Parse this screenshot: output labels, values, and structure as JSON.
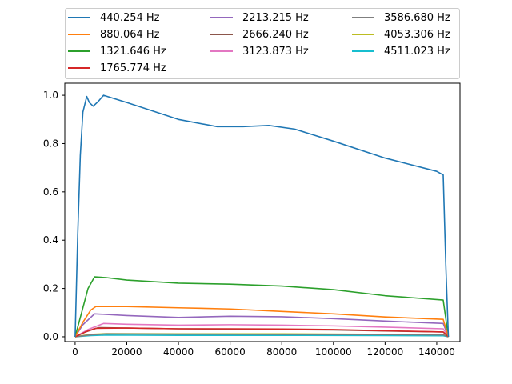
{
  "chart_data": {
    "type": "line",
    "title": "",
    "xlabel": "",
    "ylabel": "",
    "xlim": [
      -4000,
      149000
    ],
    "ylim": [
      -0.02,
      1.05
    ],
    "xticks": [
      0,
      20000,
      40000,
      60000,
      80000,
      100000,
      120000,
      140000
    ],
    "yticks": [
      0.0,
      0.2,
      0.4,
      0.6,
      0.8,
      1.0
    ],
    "xtick_labels": [
      "0",
      "20000",
      "40000",
      "60000",
      "80000",
      "100000",
      "120000",
      "140000"
    ],
    "ytick_labels": [
      "0.0",
      "0.2",
      "0.4",
      "0.6",
      "0.8",
      "1.0"
    ],
    "grid": false,
    "legend_position": "top, outside plot, 3 columns",
    "series": [
      {
        "name": "440.254 Hz",
        "color": "#1f77b4",
        "points": [
          [
            0,
            0
          ],
          [
            1000,
            0.42
          ],
          [
            2000,
            0.75
          ],
          [
            3000,
            0.93
          ],
          [
            4500,
            0.995
          ],
          [
            5500,
            0.97
          ],
          [
            7000,
            0.955
          ],
          [
            9000,
            0.975
          ],
          [
            11000,
            1.0
          ],
          [
            20000,
            0.97
          ],
          [
            40000,
            0.9
          ],
          [
            55000,
            0.87
          ],
          [
            65000,
            0.87
          ],
          [
            75000,
            0.875
          ],
          [
            85000,
            0.86
          ],
          [
            100000,
            0.81
          ],
          [
            120000,
            0.74
          ],
          [
            140000,
            0.685
          ],
          [
            142500,
            0.67
          ],
          [
            143500,
            0.3
          ],
          [
            144500,
            0
          ]
        ]
      },
      {
        "name": "880.064 Hz",
        "color": "#ff7f0e",
        "points": [
          [
            0,
            0
          ],
          [
            3000,
            0.06
          ],
          [
            6000,
            0.11
          ],
          [
            8000,
            0.125
          ],
          [
            20000,
            0.125
          ],
          [
            40000,
            0.12
          ],
          [
            60000,
            0.115
          ],
          [
            80000,
            0.105
          ],
          [
            100000,
            0.095
          ],
          [
            120000,
            0.082
          ],
          [
            142500,
            0.072
          ],
          [
            144500,
            0
          ]
        ]
      },
      {
        "name": "1321.646 Hz",
        "color": "#2ca02c",
        "points": [
          [
            0,
            0
          ],
          [
            2500,
            0.1
          ],
          [
            5000,
            0.2
          ],
          [
            7500,
            0.248
          ],
          [
            12000,
            0.245
          ],
          [
            20000,
            0.235
          ],
          [
            40000,
            0.222
          ],
          [
            60000,
            0.218
          ],
          [
            80000,
            0.21
          ],
          [
            100000,
            0.195
          ],
          [
            120000,
            0.17
          ],
          [
            142500,
            0.152
          ],
          [
            144500,
            0
          ]
        ]
      },
      {
        "name": "1765.774 Hz",
        "color": "#d62728",
        "points": [
          [
            0,
            0
          ],
          [
            4000,
            0.02
          ],
          [
            8000,
            0.035
          ],
          [
            20000,
            0.036
          ],
          [
            40000,
            0.033
          ],
          [
            60000,
            0.033
          ],
          [
            80000,
            0.032
          ],
          [
            100000,
            0.03
          ],
          [
            120000,
            0.025
          ],
          [
            142500,
            0.02
          ],
          [
            144500,
            0
          ]
        ]
      },
      {
        "name": "2213.215 Hz",
        "color": "#9467bd",
        "points": [
          [
            0,
            0
          ],
          [
            3000,
            0.05
          ],
          [
            7500,
            0.095
          ],
          [
            20000,
            0.088
          ],
          [
            40000,
            0.08
          ],
          [
            60000,
            0.085
          ],
          [
            80000,
            0.083
          ],
          [
            100000,
            0.075
          ],
          [
            120000,
            0.065
          ],
          [
            142500,
            0.055
          ],
          [
            144500,
            0
          ]
        ]
      },
      {
        "name": "2666.240 Hz",
        "color": "#8c564b",
        "points": [
          [
            0,
            0
          ],
          [
            4000,
            0.02
          ],
          [
            9000,
            0.038
          ],
          [
            20000,
            0.036
          ],
          [
            40000,
            0.033
          ],
          [
            60000,
            0.032
          ],
          [
            80000,
            0.03
          ],
          [
            100000,
            0.028
          ],
          [
            120000,
            0.024
          ],
          [
            142500,
            0.02
          ],
          [
            144500,
            0
          ]
        ]
      },
      {
        "name": "3123.873 Hz",
        "color": "#e377c2",
        "points": [
          [
            0,
            0
          ],
          [
            5000,
            0.03
          ],
          [
            11000,
            0.055
          ],
          [
            20000,
            0.052
          ],
          [
            40000,
            0.048
          ],
          [
            60000,
            0.05
          ],
          [
            80000,
            0.048
          ],
          [
            100000,
            0.045
          ],
          [
            120000,
            0.04
          ],
          [
            142500,
            0.033
          ],
          [
            144500,
            0
          ]
        ]
      },
      {
        "name": "3586.680 Hz",
        "color": "#7f7f7f",
        "points": [
          [
            0,
            0
          ],
          [
            6000,
            0.008
          ],
          [
            12000,
            0.012
          ],
          [
            40000,
            0.011
          ],
          [
            80000,
            0.01
          ],
          [
            120000,
            0.009
          ],
          [
            142500,
            0.008
          ],
          [
            144500,
            0
          ]
        ]
      },
      {
        "name": "4053.306 Hz",
        "color": "#bcbd22",
        "points": [
          [
            0,
            0
          ],
          [
            6000,
            0.01
          ],
          [
            12000,
            0.013
          ],
          [
            40000,
            0.012
          ],
          [
            80000,
            0.012
          ],
          [
            120000,
            0.01
          ],
          [
            142500,
            0.009
          ],
          [
            144500,
            0
          ]
        ]
      },
      {
        "name": "4511.023 Hz",
        "color": "#17becf",
        "points": [
          [
            0,
            0
          ],
          [
            6000,
            0.005
          ],
          [
            12000,
            0.007
          ],
          [
            40000,
            0.006
          ],
          [
            80000,
            0.006
          ],
          [
            120000,
            0.005
          ],
          [
            142500,
            0.004
          ],
          [
            144500,
            0
          ]
        ]
      }
    ]
  }
}
